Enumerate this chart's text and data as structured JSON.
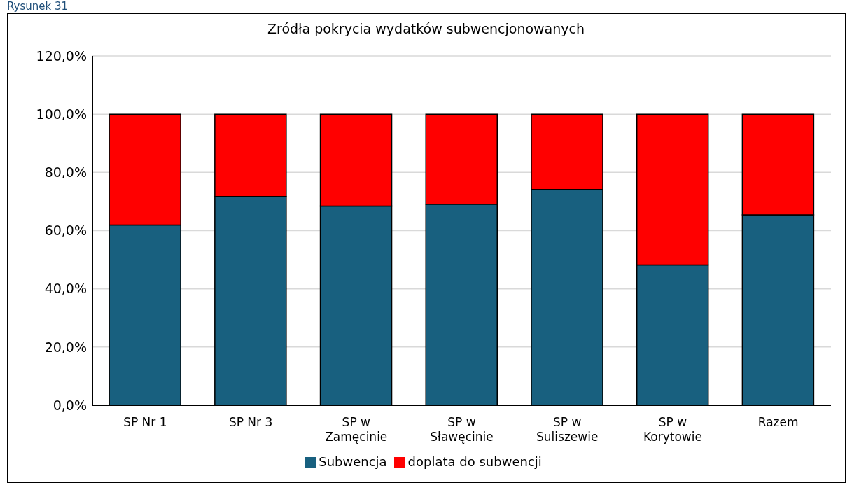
{
  "chart_data": {
    "type": "bar",
    "title": "Zródła pokrycia wydatków subwencjonowanych",
    "annotations": [
      "Rysunek 31"
    ],
    "categories": [
      "SP Nr 1",
      "SP Nr 3",
      "SP w Zamęcinie",
      "SP w Sławęcinie",
      "SP w Suliszewie",
      "SP w Korytowie",
      "Razem"
    ],
    "stacked": true,
    "series": [
      {
        "name": "Subwencja",
        "color": "#18607f",
        "values": [
          61.9,
          71.7,
          68.4,
          69.1,
          74.1,
          48.2,
          65.4
        ]
      },
      {
        "name": "doplata do subwencji",
        "color": "#ff0000",
        "values": [
          38.1,
          28.3,
          31.6,
          30.9,
          25.9,
          51.8,
          34.6
        ]
      }
    ],
    "ylim": [
      0,
      120
    ],
    "yticks": [
      {
        "value": 0,
        "label": "0,0%"
      },
      {
        "value": 20,
        "label": "20,0%"
      },
      {
        "value": 40,
        "label": "40,0%"
      },
      {
        "value": 60,
        "label": "60,0%"
      },
      {
        "value": 80,
        "label": "80,0%"
      },
      {
        "value": 100,
        "label": "100,0%"
      },
      {
        "value": 120,
        "label": "120,0%"
      }
    ],
    "grid": "y",
    "legend": "bottom"
  }
}
